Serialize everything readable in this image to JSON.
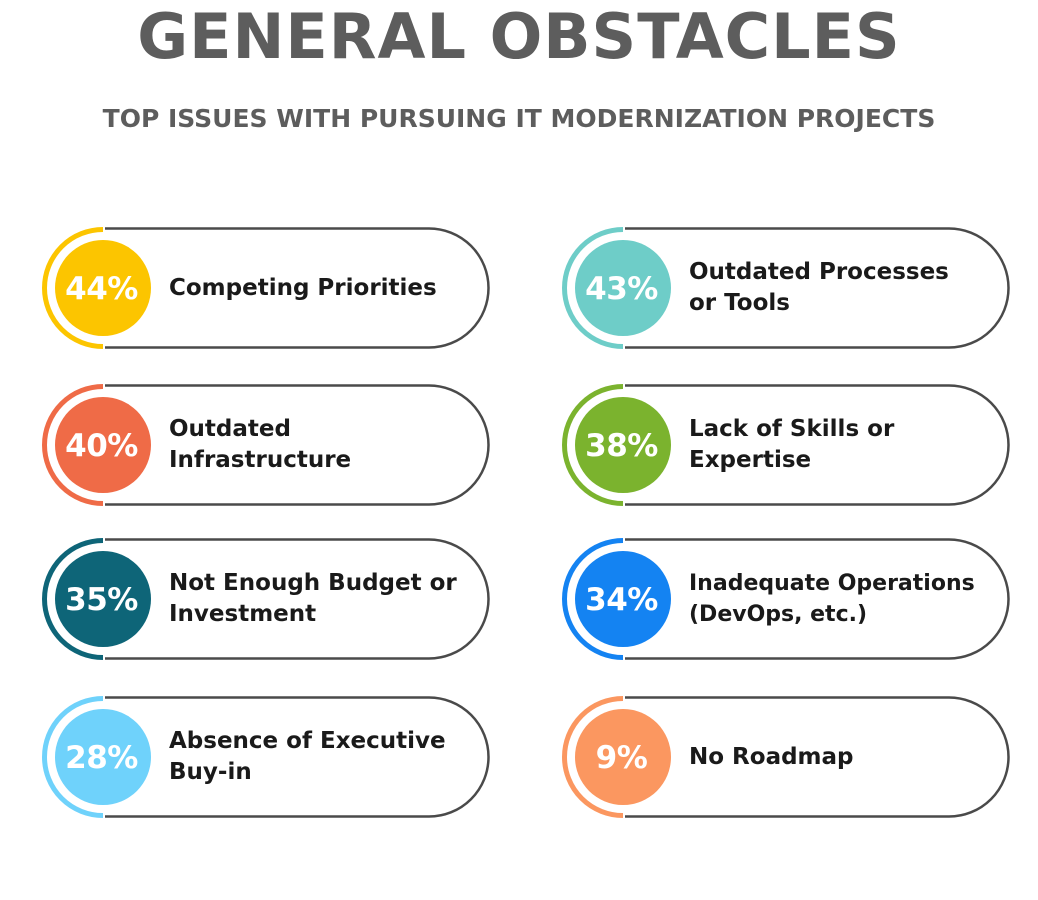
{
  "title": "GENERAL OBSTACLES",
  "subtitle": "TOP ISSUES WITH PURSUING IT MODERNIZATION PROJECTS",
  "items": [
    {
      "percent": "44%",
      "label": "Competing Priorities",
      "color": "#fcc500"
    },
    {
      "percent": "43%",
      "label": "Outdated Processes or Tools",
      "color": "#6ecdc8"
    },
    {
      "percent": "40%",
      "label": "Outdated Infrastructure",
      "color": "#ef6b47"
    },
    {
      "percent": "38%",
      "label": "Lack of Skills or Expertise",
      "color": "#7bb32e"
    },
    {
      "percent": "35%",
      "label": "Not Enough Budget or Investment",
      "color": "#0e6578"
    },
    {
      "percent": "34%",
      "label": "Inadequate Operations (DevOps, etc.)",
      "color": "#1483f2"
    },
    {
      "percent": "28%",
      "label": "Absence of Executive Buy-in",
      "color": "#6fd2fb"
    },
    {
      "percent": "9%",
      "label": "No Roadmap",
      "color": "#fb9760"
    }
  ]
}
